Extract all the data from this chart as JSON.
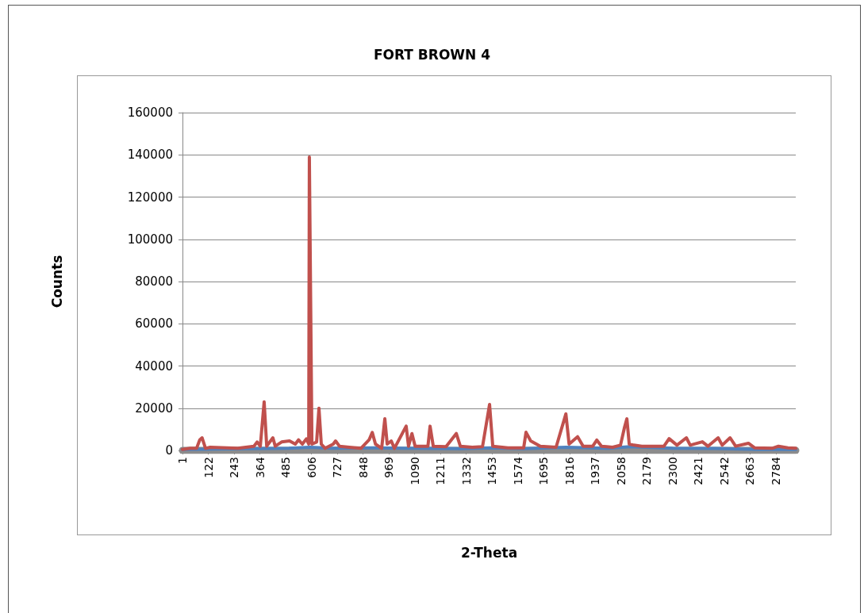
{
  "chart_data": {
    "type": "line",
    "title": "FORT BROWN 4",
    "xlabel": "2-Theta",
    "ylabel": "Counts",
    "xlim": [
      1,
      2877
    ],
    "xticks": [
      1,
      122,
      243,
      364,
      485,
      606,
      727,
      848,
      969,
      1090,
      1211,
      1332,
      1453,
      1574,
      1695,
      1816,
      1937,
      2058,
      2179,
      2300,
      2421,
      2542,
      2663,
      2784
    ],
    "ylim": [
      0,
      160000
    ],
    "yticks": [
      0,
      20000,
      40000,
      60000,
      80000,
      100000,
      120000,
      140000,
      160000
    ],
    "grid": "y",
    "marker": "none",
    "line_style": "solid",
    "series": [
      {
        "color": "#8c8c8c",
        "x": [
          1,
          2877
        ],
        "values": [
          0,
          0
        ]
      },
      {
        "color": "#4f81bd",
        "x": [
          1,
          300,
          500,
          600,
          700,
          900,
          1100,
          1300,
          1450,
          1600,
          1800,
          2000,
          2100,
          2300,
          2500,
          2700,
          2877
        ],
        "values": [
          500,
          800,
          1000,
          1500,
          1000,
          1200,
          1000,
          800,
          1200,
          800,
          1500,
          1000,
          1800,
          1000,
          900,
          500,
          500
        ]
      },
      {
        "color": "#c0504d",
        "x": [
          1,
          37,
          67,
          82,
          93,
          109,
          131,
          261,
          298,
          336,
          351,
          366,
          384,
          396,
          425,
          436,
          466,
          503,
          530,
          545,
          563,
          582,
          593,
          596,
          608,
          630,
          641,
          652,
          670,
          708,
          719,
          737,
          783,
          838,
          876,
          891,
          906,
          935,
          950,
          961,
          980,
          995,
          1050,
          1061,
          1077,
          1092,
          1152,
          1162,
          1177,
          1237,
          1285,
          1304,
          1360,
          1408,
          1441,
          1456,
          1527,
          1601,
          1612,
          1634,
          1679,
          1753,
          1799,
          1814,
          1854,
          1880,
          1925,
          1944,
          1966,
          2018,
          2055,
          2074,
          2085,
          2096,
          2118,
          2155,
          2259,
          2283,
          2320,
          2364,
          2382,
          2439,
          2465,
          2513,
          2532,
          2569,
          2595,
          2655,
          2685,
          2766,
          2796,
          2840,
          2877
        ],
        "values": [
          500,
          1000,
          1000,
          5000,
          6000,
          1000,
          1500,
          1000,
          1500,
          2000,
          4000,
          2000,
          23000,
          2000,
          6000,
          2000,
          4000,
          4500,
          3000,
          5000,
          3000,
          5500,
          3000,
          139000,
          3000,
          4000,
          20000,
          3000,
          1000,
          3000,
          4500,
          2000,
          1500,
          1000,
          5000,
          8500,
          3000,
          1000,
          15000,
          3000,
          4500,
          1000,
          11500,
          2000,
          8000,
          2000,
          2000,
          11500,
          2000,
          1800,
          8000,
          2000,
          1500,
          1800,
          21800,
          2000,
          1200,
          1200,
          8600,
          4500,
          2000,
          1500,
          17300,
          3000,
          6500,
          2000,
          2000,
          4900,
          2000,
          1500,
          2500,
          11000,
          15000,
          3000,
          2500,
          2000,
          2000,
          5600,
          2500,
          6000,
          2500,
          4100,
          2000,
          6000,
          2500,
          6000,
          2000,
          3400,
          1200,
          1000,
          2000,
          1200,
          1000
        ]
      }
    ]
  }
}
